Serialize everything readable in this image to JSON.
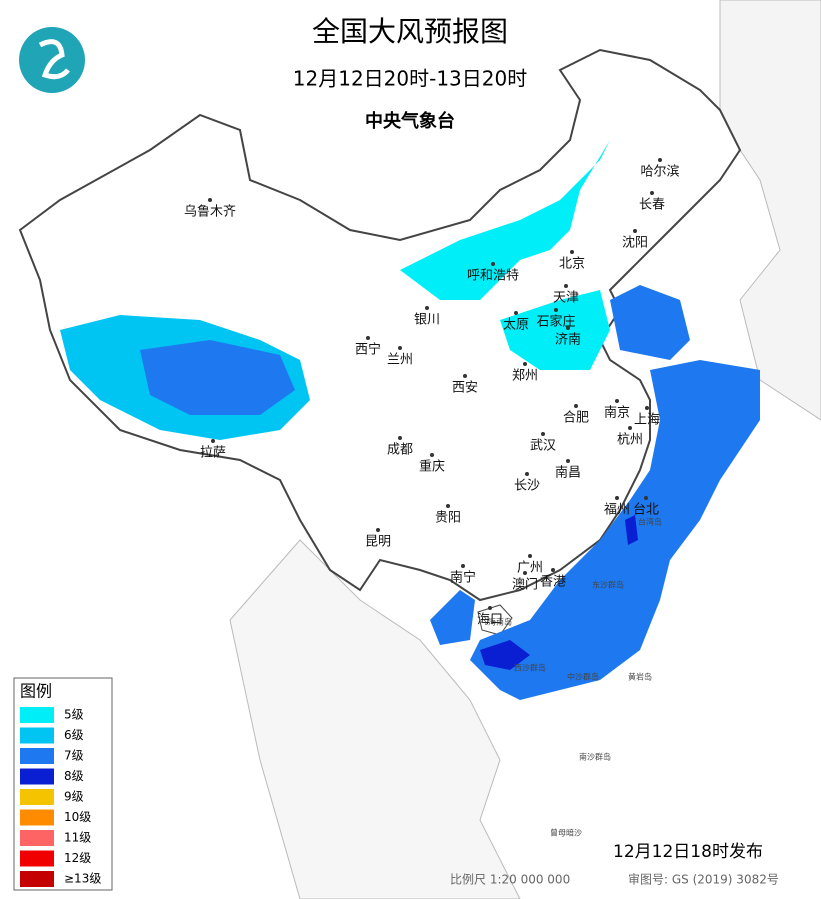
{
  "header": {
    "title": "全国大风预报图",
    "time_range": "12月12日20时-13日20时",
    "agency": "中央气象台"
  },
  "legend": {
    "title": "图例",
    "items": [
      {
        "label": "5级",
        "color": "#00eef8"
      },
      {
        "label": "6级",
        "color": "#00c4f2"
      },
      {
        "label": "7级",
        "color": "#1e78f0"
      },
      {
        "label": "8级",
        "color": "#0a1ed2"
      },
      {
        "label": "9级",
        "color": "#f5c400"
      },
      {
        "label": "10级",
        "color": "#ff8c00"
      },
      {
        "label": "11级",
        "color": "#ff6464"
      },
      {
        "label": "12级",
        "color": "#f00000"
      },
      {
        "label": "≥13级",
        "color": "#c40000"
      }
    ]
  },
  "cities": [
    "乌鲁木齐",
    "哈尔滨",
    "长春",
    "沈阳",
    "北京",
    "呼和浩特",
    "天津",
    "银川",
    "太原",
    "石家庄",
    "济南",
    "西宁",
    "兰州",
    "郑州",
    "西安",
    "合肥",
    "南京",
    "上海",
    "杭州",
    "武汉",
    "成都",
    "拉萨",
    "重庆",
    "南昌",
    "长沙",
    "福州",
    "台北",
    "贵阳",
    "昆明",
    "广州",
    "南宁",
    "澳门",
    "香港",
    "海口"
  ],
  "islands": [
    "台湾岛",
    "海南岛",
    "东沙群岛",
    "西沙群岛",
    "中沙群岛",
    "黄岩岛",
    "南沙群岛",
    "曾母暗沙"
  ],
  "footer": {
    "issued": "12月12日18时发布",
    "scale": "比例尺 1:20 000 000",
    "map_number": "审图号: GS (2019) 3082号"
  }
}
